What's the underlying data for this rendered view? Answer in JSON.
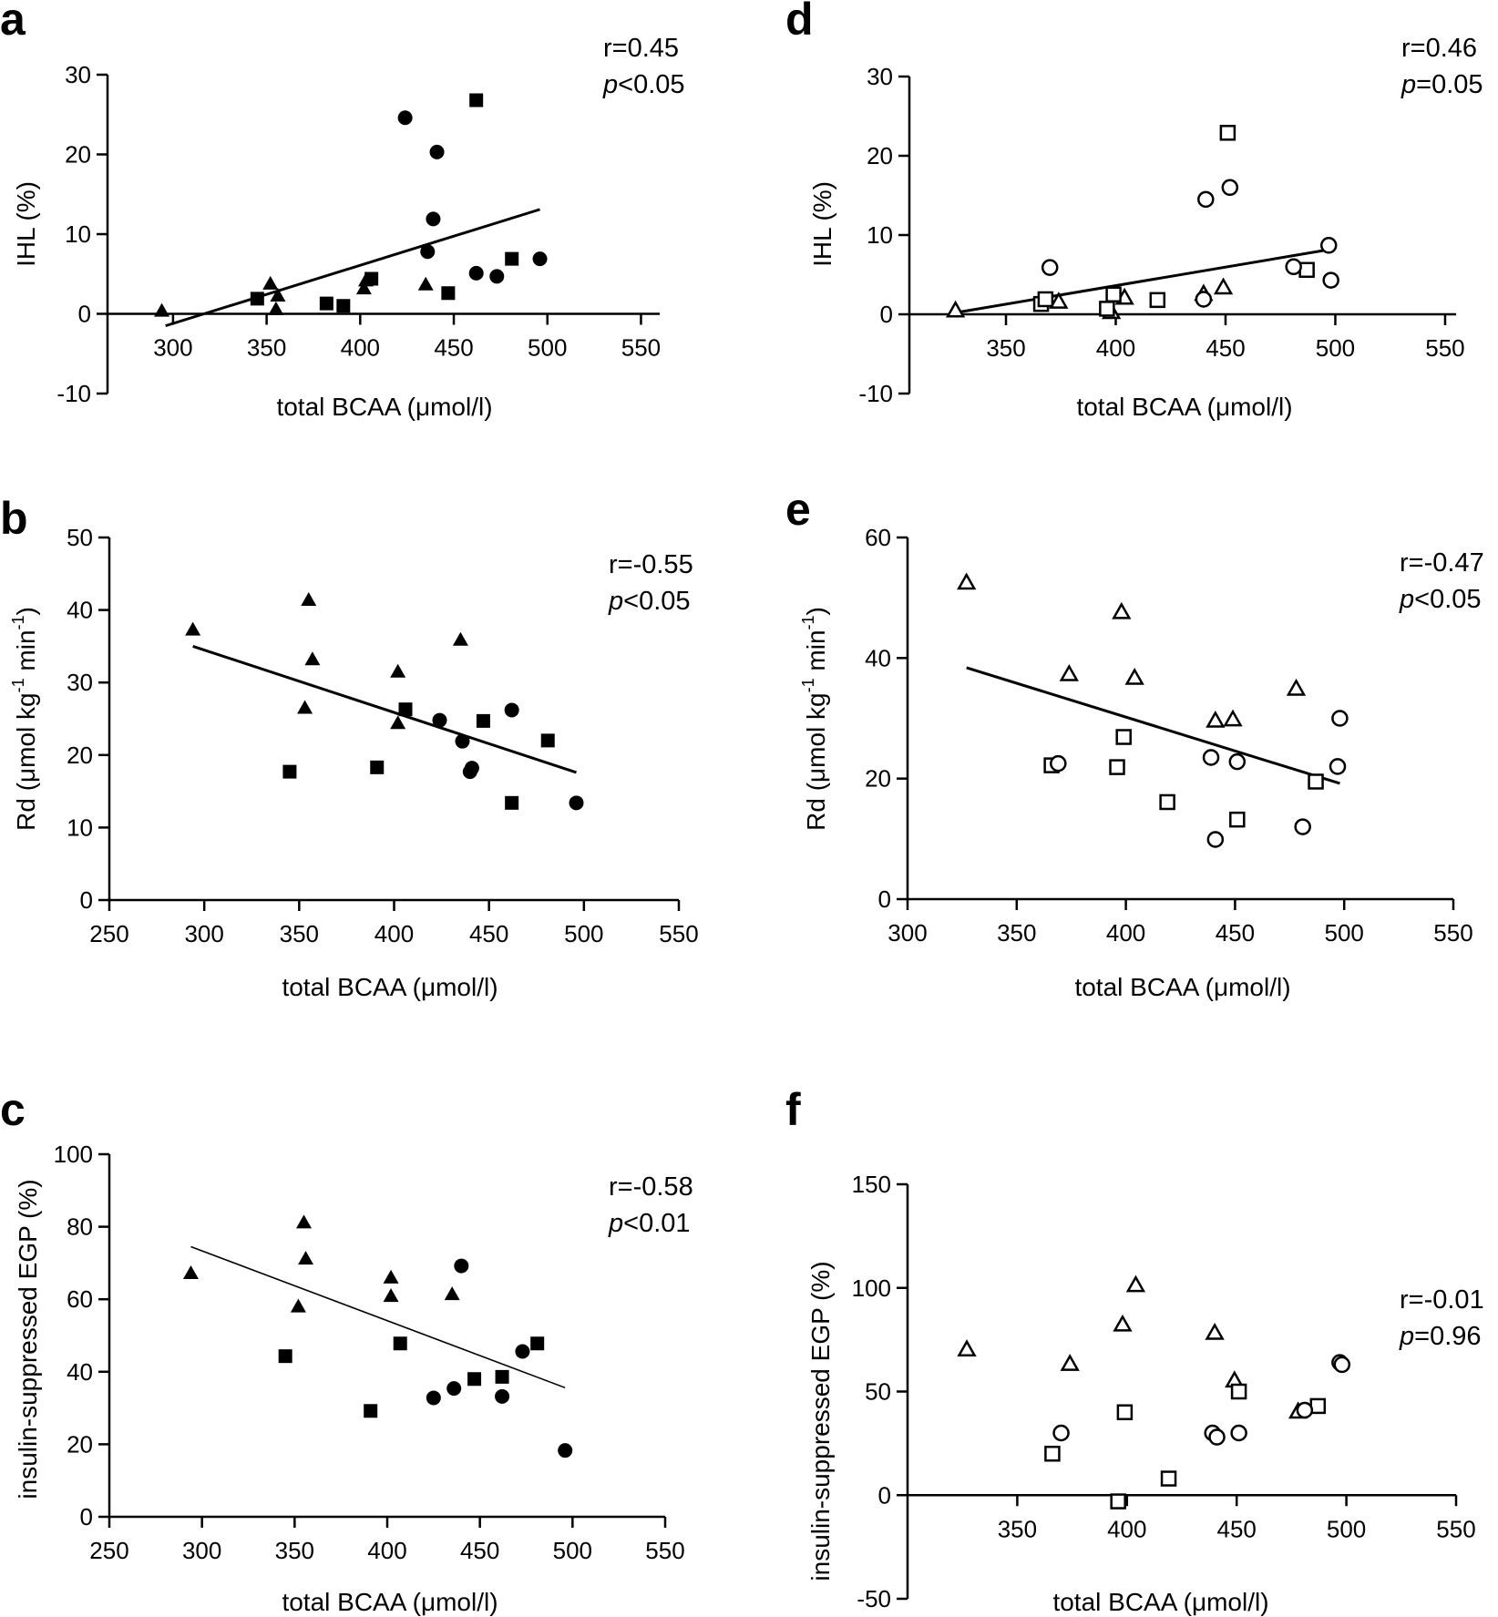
{
  "figure": {
    "description_free": true
  },
  "chart_data": [
    {
      "id": "a",
      "panel_label": "a",
      "type": "scatter",
      "marker_fill": "filled",
      "xlabel": "total BCAA (μmol/l)",
      "ylabel": "IHL (%)",
      "xlim": [
        265,
        560
      ],
      "ylim": [
        -10,
        30
      ],
      "xticks": [
        300,
        350,
        400,
        450,
        500,
        550
      ],
      "yticks": [
        -10,
        0,
        10,
        20,
        30
      ],
      "x_axis_at_zero": true,
      "x_axis_start": 265,
      "stat_r": "r=0.45",
      "stat_p_label": "p",
      "stat_p_value": "<0.05",
      "fit": {
        "x": [
          296,
          496
        ],
        "y": [
          -1.5,
          13.1
        ],
        "thin": false
      },
      "points": [
        {
          "shape": "triangle",
          "x": [
            294,
            352,
            355,
            356,
            402,
            403,
            435
          ],
          "y": [
            0.3,
            3.7,
            0.5,
            2.2,
            3.1,
            4.1,
            3.6
          ]
        },
        {
          "shape": "square",
          "x": [
            345,
            382,
            391,
            406,
            447,
            462,
            481
          ],
          "y": [
            1.9,
            1.3,
            1.0,
            4.4,
            2.6,
            26.8,
            6.9
          ]
        },
        {
          "shape": "circle",
          "x": [
            424,
            436,
            439,
            441,
            462,
            473,
            496
          ],
          "y": [
            24.6,
            7.8,
            11.9,
            20.3,
            5.1,
            4.7,
            6.9
          ]
        }
      ]
    },
    {
      "id": "b",
      "panel_label": "b",
      "type": "scatter",
      "marker_fill": "filled",
      "xlabel": "total BCAA (μmol/l)",
      "ylabel": "Rd (μmol kg",
      "ylabel_sup1": "-1",
      "ylabel_mid": " min",
      "ylabel_sup2": "-1",
      "ylabel_end": ")",
      "xlim": [
        250,
        550
      ],
      "ylim": [
        0,
        50
      ],
      "xticks": [
        250,
        300,
        350,
        400,
        450,
        500,
        550
      ],
      "yticks": [
        0,
        10,
        20,
        30,
        40,
        50
      ],
      "stat_r": "r=-0.55",
      "stat_p_label": "p",
      "stat_p_value": "<0.05",
      "fit": {
        "x": [
          294,
          496
        ],
        "y": [
          35.0,
          17.6
        ],
        "thin": false
      },
      "points": [
        {
          "shape": "triangle",
          "x": [
            294,
            353,
            355,
            357,
            402,
            402,
            435
          ],
          "y": [
            37.2,
            26.4,
            41.3,
            33.1,
            31.4,
            24.3,
            35.8
          ]
        },
        {
          "shape": "square",
          "x": [
            345,
            391,
            406,
            447,
            462,
            481
          ],
          "y": [
            17.7,
            18.3,
            26.3,
            24.7,
            13.4,
            22.0
          ]
        },
        {
          "shape": "circle",
          "x": [
            424,
            436,
            440,
            441,
            462,
            496
          ],
          "y": [
            24.8,
            21.9,
            17.7,
            18.2,
            26.2,
            13.4
          ]
        }
      ]
    },
    {
      "id": "c",
      "panel_label": "c",
      "type": "scatter",
      "marker_fill": "filled",
      "xlabel": "total BCAA (μmol/l)",
      "ylabel": "insulin-suppressed EGP (%)",
      "xlim": [
        250,
        550
      ],
      "ylim": [
        0,
        100
      ],
      "xticks": [
        250,
        300,
        350,
        400,
        450,
        500,
        550
      ],
      "yticks": [
        0,
        20,
        40,
        60,
        80,
        100
      ],
      "stat_r": "r=-0.58",
      "stat_p_label": "p",
      "stat_p_value": "<0.01",
      "fit": {
        "x": [
          294,
          496
        ],
        "y": [
          74.5,
          35.6
        ],
        "thin": true
      },
      "points": [
        {
          "shape": "triangle",
          "x": [
            294,
            352,
            355,
            356,
            402,
            402,
            435
          ],
          "y": [
            67.0,
            57.8,
            81.0,
            71.0,
            65.8,
            60.7,
            61.2
          ]
        },
        {
          "shape": "square",
          "x": [
            345,
            391,
            407,
            447,
            462,
            481
          ],
          "y": [
            44.3,
            29.2,
            47.8,
            38.0,
            38.6,
            47.8
          ]
        },
        {
          "shape": "circle",
          "x": [
            425,
            436,
            440,
            462,
            473,
            496
          ],
          "y": [
            32.8,
            35.4,
            69.2,
            33.2,
            45.6,
            18.3
          ]
        }
      ]
    },
    {
      "id": "d",
      "panel_label": "d",
      "type": "scatter",
      "marker_fill": "open",
      "xlabel": "total BCAA (μmol/l)",
      "ylabel": "IHL (%)",
      "xlim": [
        306,
        555
      ],
      "ylim": [
        -10,
        30
      ],
      "xticks": [
        350,
        400,
        450,
        500,
        550
      ],
      "yticks": [
        -10,
        0,
        10,
        20,
        30
      ],
      "x_axis_at_zero": true,
      "x_axis_start": 306,
      "stat_r": "r=0.46",
      "stat_p_label": "p",
      "stat_p_value": "=0.05",
      "fit": {
        "x": [
          327,
          498
        ],
        "y": [
          0.2,
          8.2
        ],
        "thin": false
      },
      "points": [
        {
          "shape": "triangle",
          "x": [
            327,
            374,
            398,
            404,
            440,
            449
          ],
          "y": [
            0.4,
            1.5,
            0.2,
            2.0,
            2.5,
            3.3
          ]
        },
        {
          "shape": "square",
          "x": [
            366,
            368,
            396,
            399,
            419,
            451,
            487
          ],
          "y": [
            1.3,
            1.9,
            0.7,
            2.5,
            1.8,
            22.9,
            5.6
          ]
        },
        {
          "shape": "circle",
          "x": [
            370,
            440,
            441,
            452,
            481,
            497,
            498
          ],
          "y": [
            5.9,
            1.9,
            14.5,
            16.0,
            6.0,
            8.7,
            4.3
          ]
        }
      ]
    },
    {
      "id": "e",
      "panel_label": "e",
      "type": "scatter",
      "marker_fill": "open",
      "xlabel": "total BCAA (μmol/l)",
      "ylabel": "Rd (μmol kg",
      "ylabel_sup1": "-1",
      "ylabel_mid": " min",
      "ylabel_sup2": "-1",
      "ylabel_end": ")",
      "xlim": [
        300,
        550
      ],
      "ylim": [
        0,
        60
      ],
      "xticks": [
        300,
        350,
        400,
        450,
        500,
        550
      ],
      "yticks": [
        0,
        20,
        40,
        60
      ],
      "stat_r": "r=-0.47",
      "stat_p_label": "p",
      "stat_p_value": "<0.05",
      "fit": {
        "x": [
          327,
          498
        ],
        "y": [
          38.4,
          19.2
        ],
        "thin": false
      },
      "points": [
        {
          "shape": "triangle",
          "x": [
            327,
            374,
            398,
            404,
            441,
            449,
            478
          ],
          "y": [
            52.4,
            37.2,
            47.5,
            36.6,
            29.5,
            29.7,
            34.8
          ]
        },
        {
          "shape": "square",
          "x": [
            366,
            396,
            399,
            419,
            451,
            487
          ],
          "y": [
            22.2,
            21.9,
            26.9,
            16.1,
            13.2,
            19.5
          ]
        },
        {
          "shape": "circle",
          "x": [
            369,
            439,
            441,
            451,
            481,
            497,
            498
          ],
          "y": [
            22.5,
            23.5,
            9.9,
            22.8,
            12.0,
            22.0,
            30.0
          ]
        }
      ]
    },
    {
      "id": "f",
      "panel_label": "f",
      "type": "scatter",
      "marker_fill": "open",
      "xlabel": "total BCAA (μmol/l)",
      "ylabel": "insulin-suppressed EGP (%)",
      "xlim": [
        300,
        550
      ],
      "ylim": [
        -50,
        150
      ],
      "xticks": [
        350,
        400,
        450,
        500,
        550
      ],
      "yticks": [
        -50,
        0,
        50,
        100,
        150
      ],
      "x_axis_at_zero": true,
      "x_axis_start": 300,
      "stat_r": "r=-0.01",
      "stat_p_label": "p",
      "stat_p_value": "=0.96",
      "fit": null,
      "points": [
        {
          "shape": "triangle",
          "x": [
            327,
            374,
            398,
            404,
            440,
            449,
            478
          ],
          "y": [
            70.0,
            63.0,
            82.0,
            101.0,
            78.0,
            55.0,
            40.0
          ]
        },
        {
          "shape": "square",
          "x": [
            366,
            396,
            399,
            419,
            451,
            487
          ],
          "y": [
            20.0,
            -3.0,
            40.0,
            8.0,
            50.0,
            43.0
          ]
        },
        {
          "shape": "circle",
          "x": [
            370,
            439,
            441,
            451,
            481,
            497,
            498
          ],
          "y": [
            30.0,
            30.0,
            28.0,
            30.0,
            41.0,
            64.0,
            63.0
          ]
        }
      ]
    }
  ]
}
